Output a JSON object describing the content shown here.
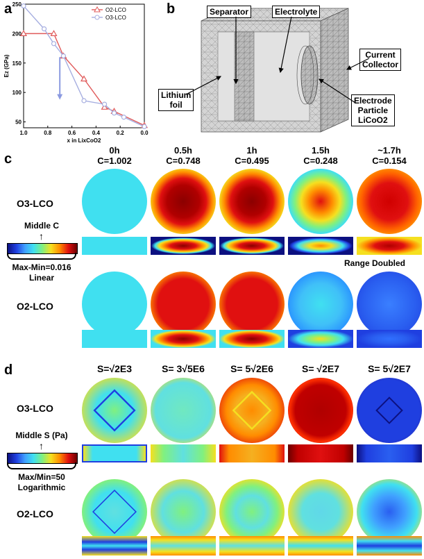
{
  "panel_a": {
    "label": "a",
    "chart_data": {
      "type": "line",
      "xlabel": "x in LixCoO2",
      "ylabel": "Ez (GPa)",
      "xlim": [
        1.0,
        0.0
      ],
      "ylim": [
        40,
        250
      ],
      "xticks": [
        "1.0",
        "0.8",
        "0.6",
        "0.4",
        "0.2",
        "0.0"
      ],
      "yticks": [
        "50",
        "100",
        "150",
        "200",
        "250"
      ],
      "legend_position": "top-right",
      "series": [
        {
          "name": "O2-LCO",
          "color": "#e05a5a",
          "marker": "triangle",
          "x": [
            1.0,
            0.75,
            0.67,
            0.5,
            0.33,
            0.25,
            0.0
          ],
          "y": [
            200,
            200,
            162,
            123,
            75,
            68,
            44
          ]
        },
        {
          "name": "O3-LCO",
          "color": "#a6aee0",
          "marker": "circle",
          "x": [
            1.0,
            0.83,
            0.75,
            0.67,
            0.5,
            0.33,
            0.25,
            0.17,
            0.0
          ],
          "y": [
            247,
            208,
            183,
            162,
            86,
            80,
            65,
            58,
            42
          ]
        }
      ],
      "arrow": {
        "x": 0.7,
        "y_from": 160,
        "y_to": 90,
        "color": "#8b9ae0"
      }
    }
  },
  "panel_b": {
    "label": "b",
    "labels": {
      "separator": "Separator",
      "electrolyte": "Electrolyte",
      "current_collector": [
        "Current",
        "Collector"
      ],
      "lithium_foil": [
        "Lithium",
        "foil"
      ],
      "electrode_particle": [
        "Electrode",
        "Particle",
        "LiCoO2"
      ]
    }
  },
  "panel_c": {
    "label": "c",
    "columns": [
      {
        "time": "0h",
        "value": "C=1.002"
      },
      {
        "time": "0.5h",
        "value": "C=0.748"
      },
      {
        "time": "1h",
        "value": "C=0.495"
      },
      {
        "time": "1.5h",
        "value": "C=0.248"
      },
      {
        "time": "~1.7h",
        "value": "C=0.154"
      }
    ],
    "rows": [
      "O3-LCO",
      "O2-LCO"
    ],
    "colorbar": {
      "middle_label": "Middle C",
      "range_label": "Max-Min=0.016",
      "scale_label": "Linear"
    },
    "note": "Range Doubled"
  },
  "panel_d": {
    "label": "d",
    "columns": [
      "S=√2E3",
      "S= 3√5E6",
      "S= 5√2E6",
      "S= √2E7",
      "S= 5√2E7"
    ],
    "rows": [
      "O3-LCO",
      "O2-LCO"
    ],
    "colorbar": {
      "middle_label": "Middle S (Pa)",
      "range_label": "Max/Min=50",
      "scale_label": "Logarithmic"
    }
  },
  "colors": {
    "jet_dark_red": "#8b0000",
    "jet_red": "#e01010",
    "jet_orange": "#ff8c00",
    "jet_yellow": "#f5e020",
    "jet_cyan": "#40e0f0",
    "jet_blue": "#1f3fe0",
    "jet_dark_blue": "#0c1080"
  }
}
